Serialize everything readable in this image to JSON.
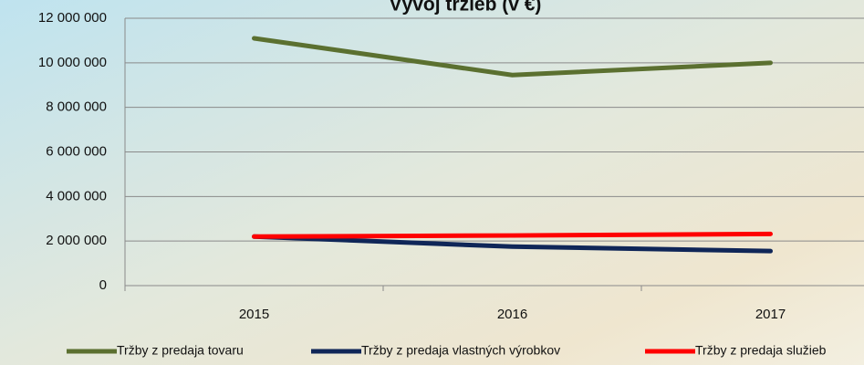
{
  "chart_data": {
    "type": "line",
    "title": "Vývoj tržieb (v €)",
    "categories": [
      "2015",
      "2016",
      "2017"
    ],
    "series": [
      {
        "name": "Tržby z predaja tovaru",
        "color": "#5b7030",
        "values": [
          11100000,
          9450000,
          10000000
        ]
      },
      {
        "name": "Tržby z predaja vlastných výrobkov",
        "color": "#0f2658",
        "values": [
          2200000,
          1750000,
          1550000
        ]
      },
      {
        "name": "Tržby z predaja služieb",
        "color": "#ff0000",
        "values": [
          2200000,
          2250000,
          2320000
        ]
      }
    ],
    "ylim": [
      0,
      12000000
    ],
    "yticks": [
      0,
      {
        "value": 2000000,
        "label": "2 000 000"
      },
      {
        "value": 4000000,
        "label": "4 000 000"
      },
      {
        "value": 6000000,
        "label": "6 000 000"
      },
      {
        "value": 8000000,
        "label": "8 000 000"
      },
      {
        "value": 10000000,
        "label": "10 000 000"
      },
      {
        "value": 12000000,
        "label": "12 000 000"
      }
    ],
    "grid": true,
    "legend": "bottom"
  }
}
